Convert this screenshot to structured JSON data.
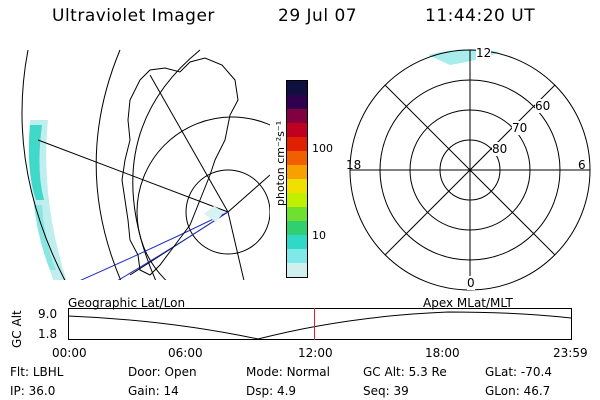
{
  "header": {
    "instrument": "Ultraviolet Imager",
    "date": "29 Jul 07",
    "time": "11:44:20 UT"
  },
  "colorbar": {
    "unit_label": "photon cm⁻²s⁻¹",
    "tick_labels": [
      "100",
      "10"
    ],
    "colors": [
      "#101040",
      "#300050",
      "#800040",
      "#c00020",
      "#e02000",
      "#f06000",
      "#f8a000",
      "#f0e000",
      "#c0f000",
      "#70e030",
      "#30d070",
      "#30d8c8",
      "#80e8e8",
      "#d0f0f0"
    ]
  },
  "polar": {
    "mlt_labels": [
      "12",
      "18",
      "6",
      "0"
    ],
    "lat_labels": [
      "60",
      "70",
      "80"
    ]
  },
  "panels": {
    "left_title": "Geographic Lat/Lon",
    "right_title": "Apex MLat/MLT"
  },
  "altitude_plot": {
    "ylabel": "GC Alt",
    "yticks": [
      "9.0",
      "1.8"
    ],
    "xticks": [
      "00:00",
      "06:00",
      "12:00",
      "18:00",
      "23:59"
    ],
    "current_marker_hour": 11.74,
    "marker_color": "#cc2222"
  },
  "info": {
    "row1": [
      {
        "label": "Flt:",
        "value": "LBHL"
      },
      {
        "label": "Door:",
        "value": "Open"
      },
      {
        "label": "Mode:",
        "value": "Normal"
      },
      {
        "label": "GC Alt:",
        "value": "5.3 Re"
      },
      {
        "label": "GLat:",
        "value": "-70.4"
      }
    ],
    "row2": [
      {
        "label": "IP:",
        "value": "36.0"
      },
      {
        "label": "Gain:",
        "value": "14"
      },
      {
        "label": "Dsp:",
        "value": "4.9"
      },
      {
        "label": "Seq:",
        "value": "39"
      },
      {
        "label": "GLon:",
        "value": "46.7"
      }
    ]
  }
}
